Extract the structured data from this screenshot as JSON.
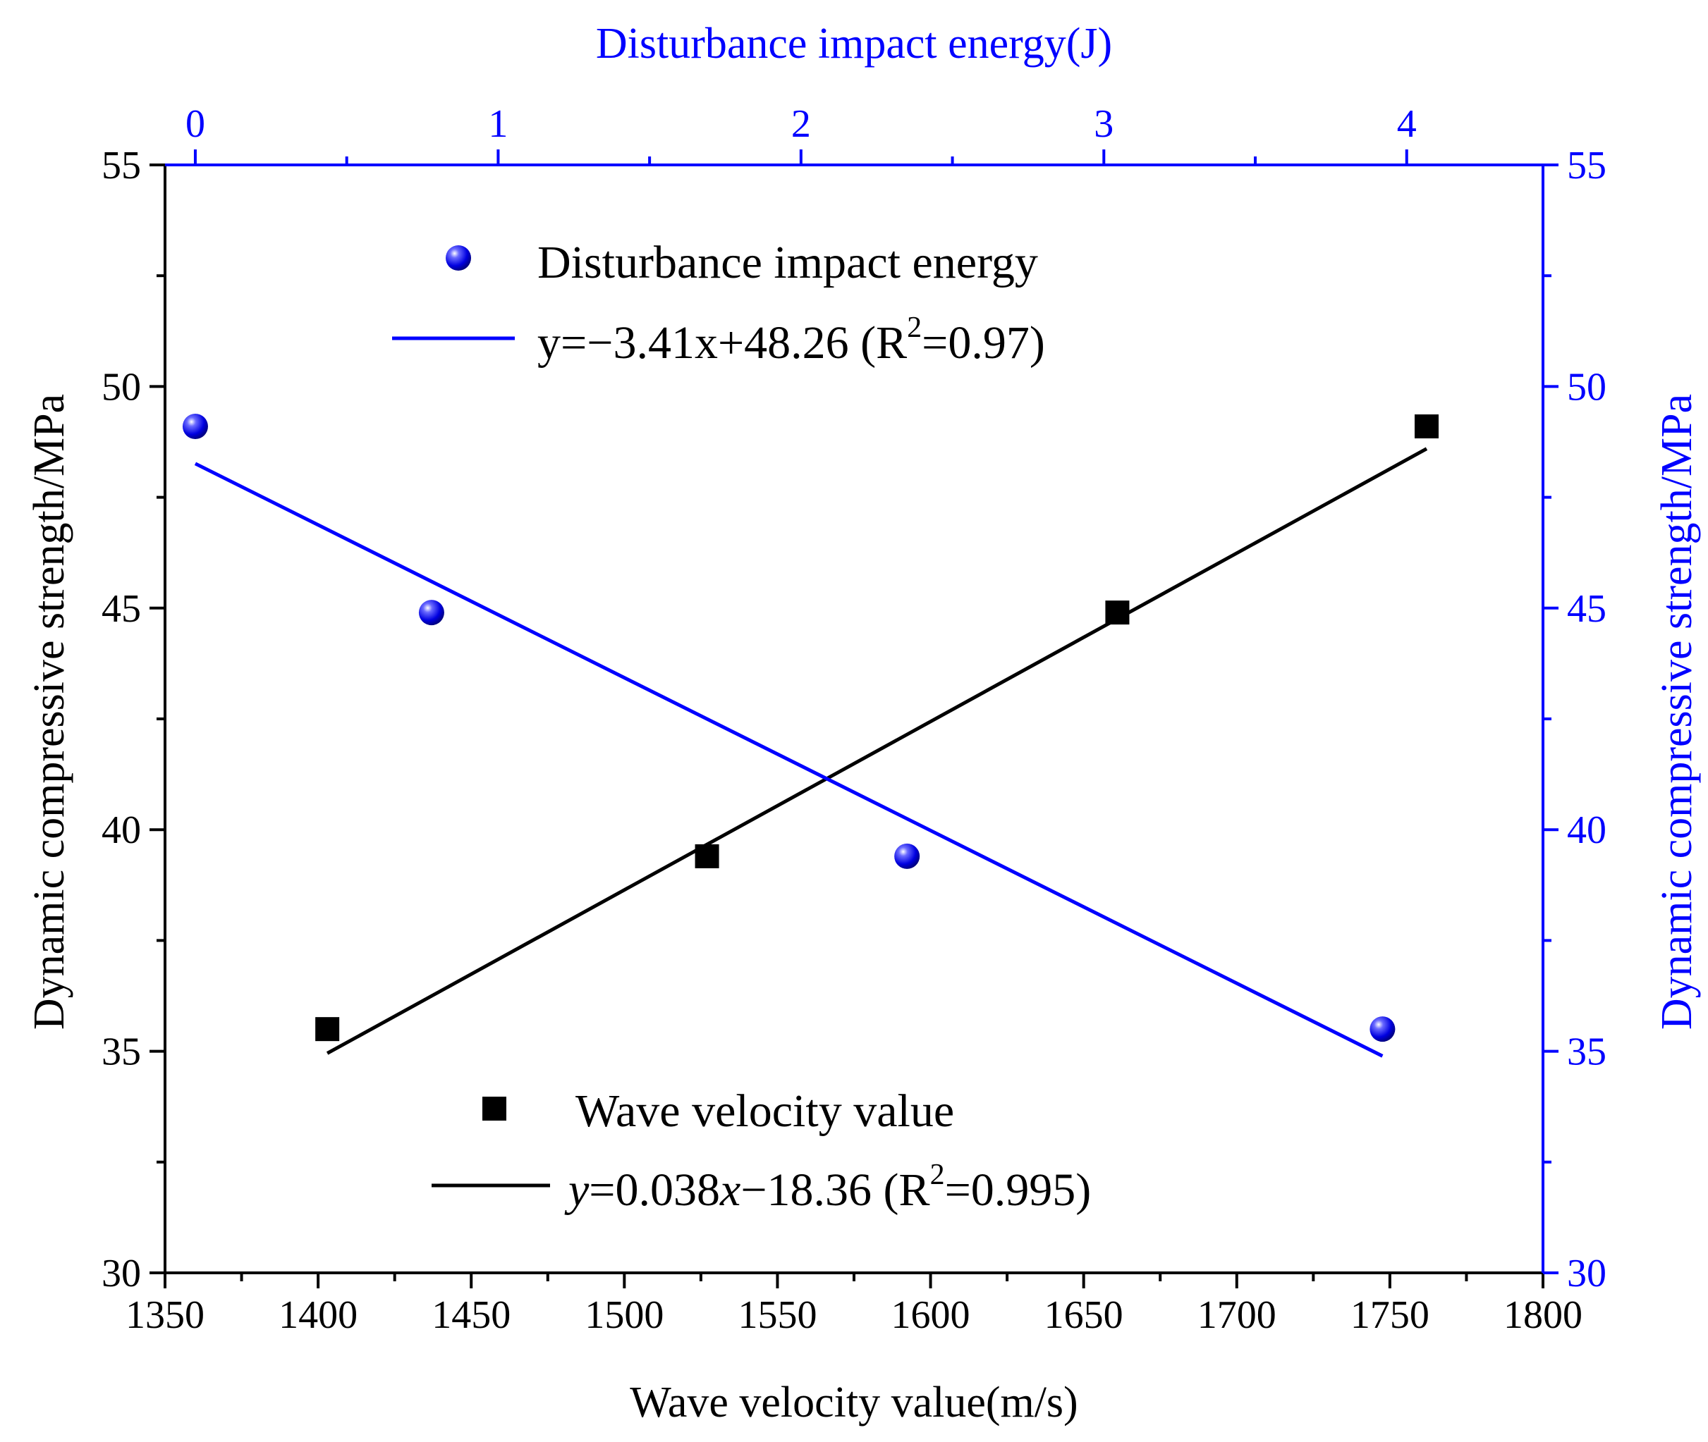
{
  "chart_data": {
    "type": "scatter",
    "bottom_axis": {
      "label": "Wave velocity value(m/s)",
      "range": [
        1350,
        1800
      ],
      "ticks": [
        1350,
        1400,
        1450,
        1500,
        1550,
        1600,
        1650,
        1700,
        1750,
        1800
      ],
      "color": "#000000"
    },
    "top_axis": {
      "label": "Disturbance impact energy(J)",
      "range": [
        -0.1,
        4.45
      ],
      "ticks": [
        0,
        1,
        2,
        3,
        4
      ],
      "color": "#0000ff"
    },
    "left_axis": {
      "label": "Dynamic compressive strength/MPa",
      "range": [
        30,
        55
      ],
      "ticks": [
        30,
        35,
        40,
        45,
        50,
        55
      ],
      "color": "#000000"
    },
    "right_axis": {
      "label": "Dynamic compressive strength/MPa",
      "range": [
        30,
        55
      ],
      "ticks": [
        30,
        35,
        40,
        45,
        50,
        55
      ],
      "color": "#0000ff"
    },
    "series": [
      {
        "name": "Wave velocity value",
        "axis": "bottom",
        "marker": "square",
        "color": "#000000",
        "x": [
          1403,
          1527,
          1661,
          1762
        ],
        "y": [
          35.5,
          39.4,
          44.9,
          49.1
        ],
        "fit": {
          "label_y": "y",
          "label_eq": "=0.038",
          "label_x": "x",
          "label_const": "−18.36 (R",
          "label_sup": "2",
          "label_end": "=0.995)",
          "slope": 0.038,
          "intercept": -18.36,
          "x_range": [
            1403,
            1762
          ]
        }
      },
      {
        "name": "Disturbance impact energy",
        "axis": "top",
        "marker": "sphere",
        "color": "#0000ff",
        "x": [
          0.0,
          0.78,
          2.35,
          3.92
        ],
        "y": [
          49.1,
          44.9,
          39.4,
          35.5
        ],
        "fit": {
          "label_pre": "y=−3.41x+48.26 (R",
          "label_sup": "2",
          "label_end": "=0.97)",
          "slope": -3.41,
          "intercept": 48.26,
          "x_range": [
            0.0,
            3.92
          ]
        }
      }
    ]
  }
}
